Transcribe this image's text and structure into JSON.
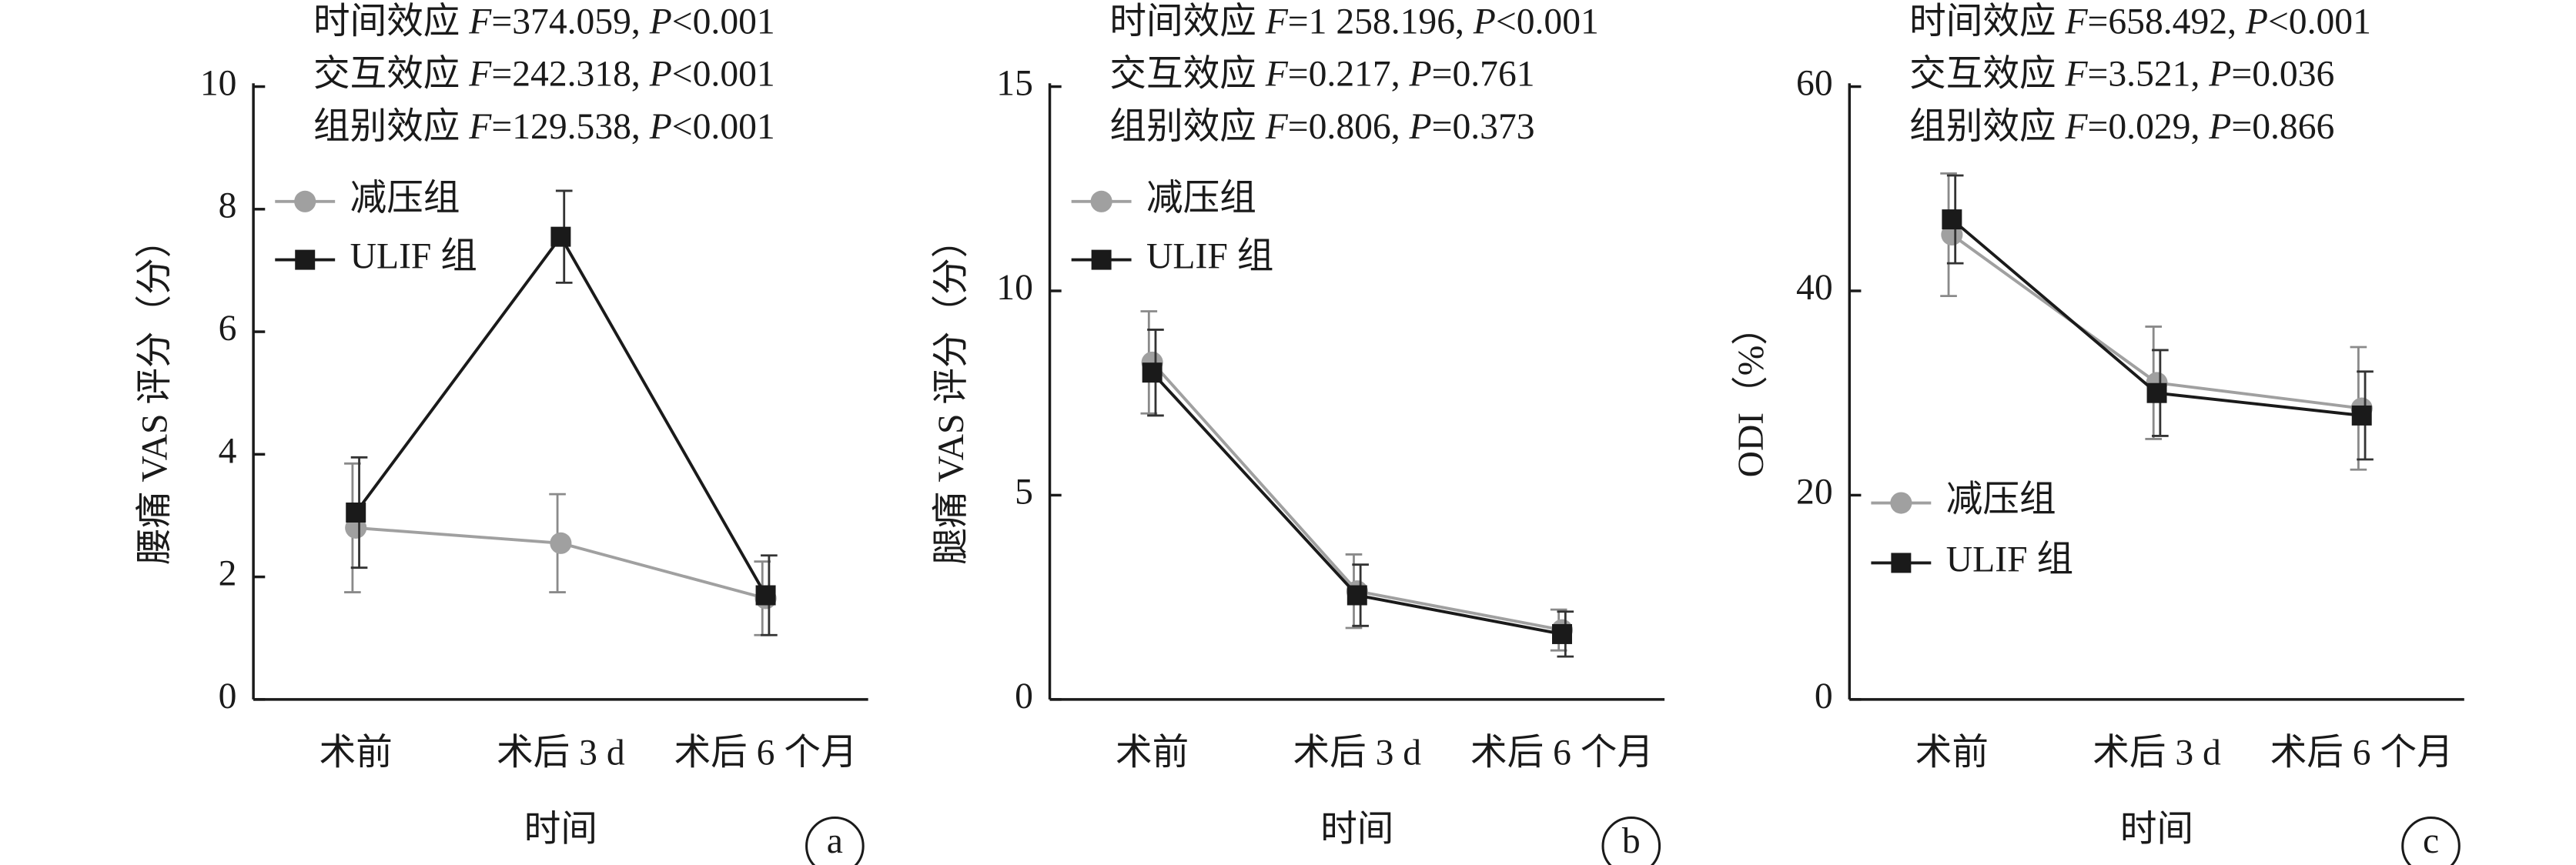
{
  "chart_data": [
    {
      "type": "line",
      "panel_label": "a",
      "ylabel": "腰痛 VAS 评分（分）",
      "xlabel": "时间",
      "annotations": [
        "时间效应 F=374.059, P<0.001",
        "交互效应 F=242.318, P<0.001",
        "组别效应 F=129.538, P<0.001"
      ],
      "categories": [
        "术前",
        "术后 3 d",
        "术后 6 个月"
      ],
      "ylim": [
        0,
        10
      ],
      "yticks": [
        0,
        2,
        4,
        6,
        8,
        10
      ],
      "legend": "upper left",
      "series": [
        {
          "name": "减压组",
          "color": "#a0a0a0",
          "marker": "circle",
          "values": [
            2.8,
            2.55,
            1.65
          ],
          "errors": [
            1.05,
            0.8,
            0.6
          ]
        },
        {
          "name": "ULIF 组",
          "color": "#1a1a1a",
          "marker": "square",
          "values": [
            3.05,
            7.55,
            1.7
          ],
          "errors": [
            0.9,
            0.75,
            0.65
          ]
        }
      ]
    },
    {
      "type": "line",
      "panel_label": "b",
      "ylabel": "腿痛 VAS 评分（分）",
      "xlabel": "时间",
      "annotations": [
        "时间效应 F=1 258.196, P<0.001",
        "交互效应 F=0.217, P=0.761",
        "组别效应 F=0.806, P=0.373"
      ],
      "categories": [
        "术前",
        "术后 3 d",
        "术后 6 个月"
      ],
      "ylim": [
        0,
        15
      ],
      "yticks": [
        0,
        5,
        10,
        15
      ],
      "legend": "upper left",
      "series": [
        {
          "name": "减压组",
          "color": "#a0a0a0",
          "marker": "circle",
          "values": [
            8.25,
            2.65,
            1.7
          ],
          "errors": [
            1.25,
            0.9,
            0.5
          ]
        },
        {
          "name": "ULIF 组",
          "color": "#1a1a1a",
          "marker": "square",
          "values": [
            8.0,
            2.55,
            1.6
          ],
          "errors": [
            1.05,
            0.75,
            0.55
          ]
        }
      ]
    },
    {
      "type": "line",
      "panel_label": "c",
      "ylabel": "ODI（%）",
      "xlabel": "时间",
      "annotations": [
        "时间效应  F=658.492, P<0.001",
        "交互效应 F=3.521, P=0.036",
        "组别效应 F=0.029, P=0.866"
      ],
      "categories": [
        "术前",
        "术后 3 d",
        "术后 6 个月"
      ],
      "ylim": [
        0,
        60
      ],
      "yticks": [
        0,
        20,
        40,
        60
      ],
      "legend": "lower left",
      "series": [
        {
          "name": "减压组",
          "color": "#a0a0a0",
          "marker": "circle",
          "values": [
            45.5,
            31,
            28.5
          ],
          "errors": [
            6,
            5.5,
            6
          ]
        },
        {
          "name": "ULIF 组",
          "color": "#1a1a1a",
          "marker": "square",
          "values": [
            47,
            30,
            27.8
          ],
          "errors": [
            4.3,
            4.2,
            4.3
          ]
        }
      ]
    }
  ]
}
